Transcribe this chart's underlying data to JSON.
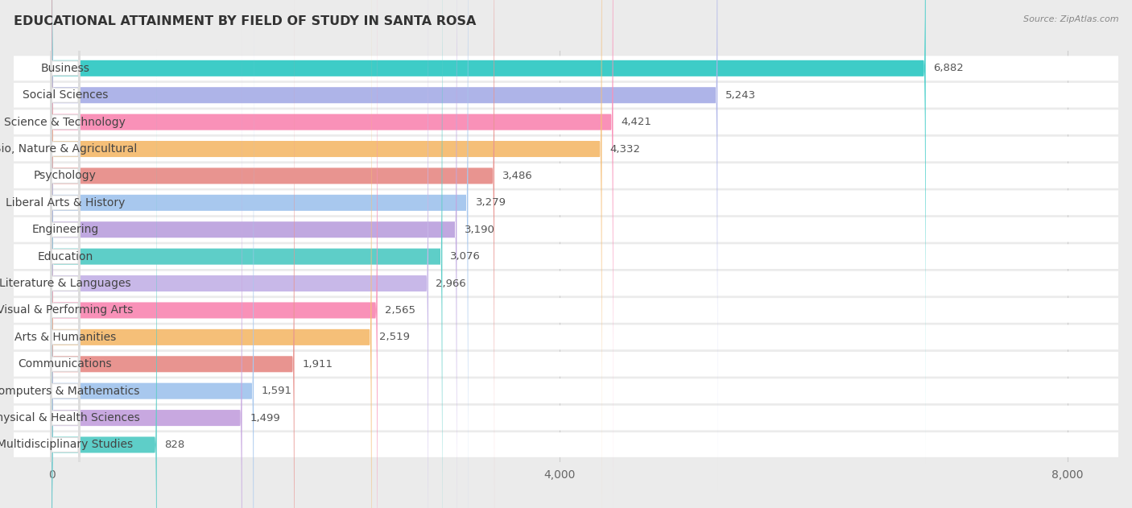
{
  "title": "EDUCATIONAL ATTAINMENT BY FIELD OF STUDY IN SANTA ROSA",
  "source": "Source: ZipAtlas.com",
  "categories": [
    "Business",
    "Social Sciences",
    "Science & Technology",
    "Bio, Nature & Agricultural",
    "Psychology",
    "Liberal Arts & History",
    "Engineering",
    "Education",
    "Literature & Languages",
    "Visual & Performing Arts",
    "Arts & Humanities",
    "Communications",
    "Computers & Mathematics",
    "Physical & Health Sciences",
    "Multidisciplinary Studies"
  ],
  "values": [
    6882,
    5243,
    4421,
    4332,
    3486,
    3279,
    3190,
    3076,
    2966,
    2565,
    2519,
    1911,
    1591,
    1499,
    828
  ],
  "colors": [
    "#3eccc7",
    "#aeb4e8",
    "#f991b8",
    "#f5bf78",
    "#e89490",
    "#a8c8ee",
    "#c0a8e0",
    "#5ecec8",
    "#c8b8e8",
    "#f991b8",
    "#f5bf78",
    "#e89490",
    "#a8c8ee",
    "#c8a8e0",
    "#5ecec8"
  ],
  "xlim": [
    0,
    8000
  ],
  "xticks": [
    0,
    4000,
    8000
  ],
  "bg_color": "#ebebeb",
  "row_bg_color": "#ffffff",
  "title_fontsize": 11.5,
  "label_fontsize": 10,
  "value_fontsize": 9.5,
  "source_fontsize": 8
}
